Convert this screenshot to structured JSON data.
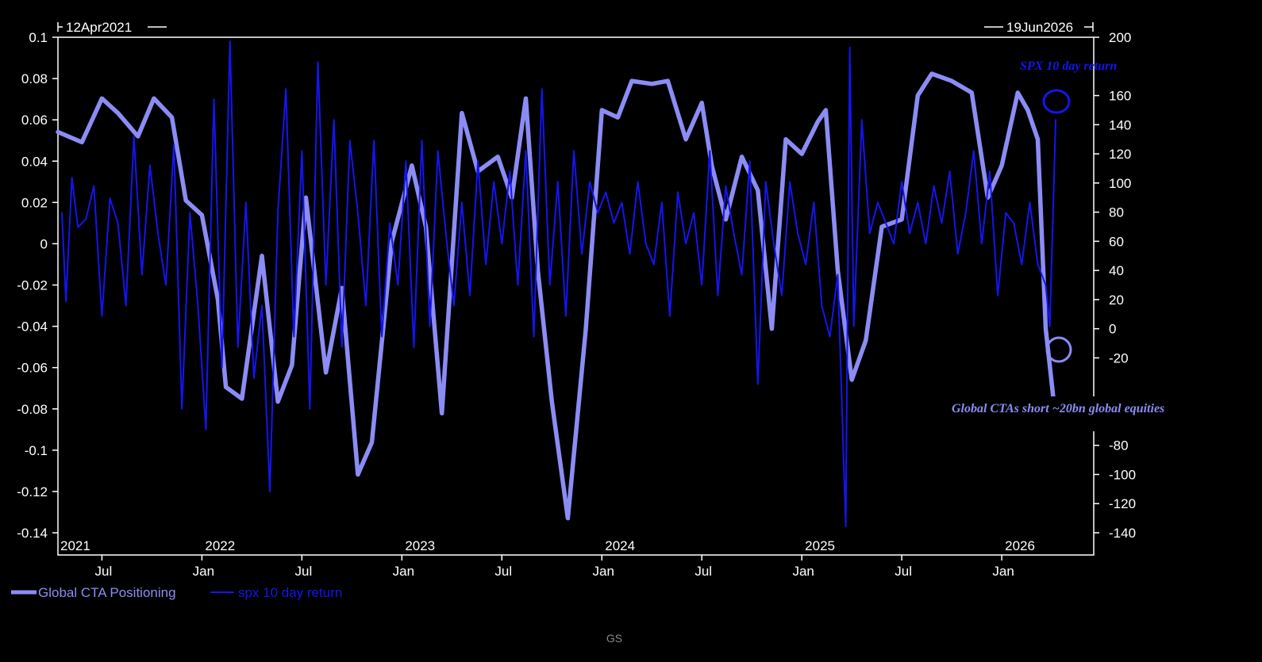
{
  "chart_data": {
    "type": "line",
    "range_start": "12Apr2021",
    "range_end": "19Jun2026",
    "x_years": [
      "2021",
      "2022",
      "2023",
      "2024",
      "2025",
      "2026"
    ],
    "x_month_ticks": [
      "Jul",
      "Jan",
      "Jul",
      "Jan",
      "Jul",
      "Jan",
      "Jul",
      "Jan",
      "Jul",
      "Jan"
    ],
    "y_left": {
      "min": -0.14,
      "max": 0.1,
      "ticks": [
        "0.1",
        "0.08",
        "0.06",
        "0.04",
        "0.02",
        "0",
        "-0.02",
        "-0.04",
        "-0.06",
        "-0.08",
        "-0.1",
        "-0.12",
        "-0.14"
      ]
    },
    "y_right": {
      "min": -140,
      "max": 200,
      "ticks": [
        "200",
        "160",
        "140",
        "120",
        "100",
        "80",
        "60",
        "40",
        "20",
        "0",
        "-20",
        "-80",
        "-100",
        "-120",
        "-140"
      ]
    },
    "colors": {
      "cta": "#8c8cf5",
      "spx": "#1515ee",
      "axis": "#ffffff",
      "background": "#000000"
    },
    "series": [
      {
        "name": "Global CTA Positioning",
        "axis": "right",
        "color": "#8c8cf5",
        "x": [
          2021.28,
          2021.4,
          2021.5,
          2021.58,
          2021.68,
          2021.76,
          2021.85,
          2021.92,
          2022.0,
          2022.08,
          2022.12,
          2022.2,
          2022.3,
          2022.38,
          2022.45,
          2022.52,
          2022.62,
          2022.7,
          2022.78,
          2022.85,
          2022.95,
          2023.05,
          2023.12,
          2023.2,
          2023.3,
          2023.38,
          2023.48,
          2023.55,
          2023.62,
          2023.68,
          2023.75,
          2023.83,
          2023.92,
          2024.0,
          2024.08,
          2024.15,
          2024.25,
          2024.33,
          2024.42,
          2024.5,
          2024.55,
          2024.62,
          2024.7,
          2024.78,
          2024.85,
          2024.92,
          2025.0,
          2025.08,
          2025.12,
          2025.18,
          2025.25,
          2025.32,
          2025.4,
          2025.5,
          2025.58,
          2025.65,
          2025.75,
          2025.85,
          2025.93,
          2026.0,
          2026.08,
          2026.13,
          2026.18,
          2026.22,
          2026.26
        ],
        "values": [
          135,
          128,
          158,
          148,
          132,
          158,
          145,
          88,
          78,
          20,
          -40,
          -48,
          50,
          -50,
          -25,
          90,
          -30,
          28,
          -100,
          -78,
          60,
          112,
          70,
          -58,
          148,
          108,
          118,
          90,
          158,
          40,
          -50,
          -130,
          0,
          150,
          145,
          170,
          168,
          170,
          130,
          155,
          112,
          75,
          118,
          95,
          0,
          130,
          120,
          142,
          150,
          40,
          -35,
          -8,
          70,
          75,
          160,
          175,
          170,
          162,
          90,
          112,
          162,
          150,
          130,
          0,
          -50
        ]
      },
      {
        "name": "spx 10 day return",
        "axis": "left",
        "color": "#1515ee",
        "x": [
          2021.3,
          2021.32,
          2021.35,
          2021.38,
          2021.42,
          2021.46,
          2021.5,
          2021.54,
          2021.58,
          2021.62,
          2021.66,
          2021.7,
          2021.74,
          2021.78,
          2021.82,
          2021.86,
          2021.9,
          2021.94,
          2021.98,
          2022.02,
          2022.06,
          2022.1,
          2022.14,
          2022.18,
          2022.22,
          2022.26,
          2022.3,
          2022.34,
          2022.38,
          2022.42,
          2022.46,
          2022.5,
          2022.54,
          2022.58,
          2022.62,
          2022.66,
          2022.7,
          2022.74,
          2022.78,
          2022.82,
          2022.86,
          2022.9,
          2022.94,
          2022.98,
          2023.02,
          2023.06,
          2023.1,
          2023.14,
          2023.18,
          2023.22,
          2023.26,
          2023.3,
          2023.34,
          2023.38,
          2023.42,
          2023.46,
          2023.5,
          2023.54,
          2023.58,
          2023.62,
          2023.66,
          2023.7,
          2023.74,
          2023.78,
          2023.82,
          2023.86,
          2023.9,
          2023.94,
          2023.98,
          2024.02,
          2024.06,
          2024.1,
          2024.14,
          2024.18,
          2024.22,
          2024.26,
          2024.3,
          2024.34,
          2024.38,
          2024.42,
          2024.46,
          2024.5,
          2024.54,
          2024.58,
          2024.62,
          2024.66,
          2024.7,
          2024.74,
          2024.78,
          2024.82,
          2024.86,
          2024.9,
          2024.94,
          2024.98,
          2025.02,
          2025.06,
          2025.1,
          2025.14,
          2025.18,
          2025.22,
          2025.24,
          2025.26,
          2025.3,
          2025.34,
          2025.38,
          2025.42,
          2025.46,
          2025.5,
          2025.54,
          2025.58,
          2025.62,
          2025.66,
          2025.7,
          2025.74,
          2025.78,
          2025.82,
          2025.86,
          2025.9,
          2025.94,
          2025.98,
          2026.02,
          2026.06,
          2026.1,
          2026.14,
          2026.18,
          2026.22,
          2026.24,
          2026.27
        ],
        "values": [
          0.015,
          -0.028,
          0.032,
          0.008,
          0.012,
          0.028,
          -0.035,
          0.022,
          0.01,
          -0.03,
          0.052,
          -0.015,
          0.038,
          0.005,
          -0.02,
          0.048,
          -0.08,
          0.015,
          -0.03,
          -0.09,
          0.07,
          -0.06,
          0.098,
          -0.05,
          0.02,
          -0.065,
          -0.03,
          -0.12,
          0.015,
          0.075,
          -0.045,
          0.045,
          -0.08,
          0.088,
          -0.02,
          0.06,
          -0.05,
          0.05,
          0.015,
          -0.03,
          0.05,
          -0.045,
          0.01,
          -0.02,
          0.04,
          -0.05,
          0.05,
          -0.04,
          0.045,
          0.005,
          -0.03,
          0.02,
          -0.025,
          0.04,
          -0.01,
          0.03,
          0.0,
          0.035,
          -0.02,
          0.045,
          -0.045,
          0.075,
          -0.02,
          0.03,
          -0.035,
          0.045,
          -0.005,
          0.03,
          0.015,
          0.025,
          0.01,
          0.02,
          -0.005,
          0.03,
          0.0,
          -0.01,
          0.02,
          -0.035,
          0.025,
          0.0,
          0.015,
          -0.02,
          0.045,
          -0.025,
          0.028,
          0.005,
          -0.015,
          0.04,
          -0.068,
          0.03,
          0.0,
          -0.025,
          0.03,
          0.005,
          -0.01,
          0.02,
          -0.03,
          -0.045,
          -0.015,
          -0.137,
          0.095,
          -0.04,
          0.06,
          0.005,
          0.02,
          0.01,
          0.0,
          0.03,
          0.005,
          0.02,
          0.0,
          0.028,
          0.01,
          0.035,
          -0.005,
          0.015,
          0.045,
          0.0,
          0.035,
          -0.025,
          0.015,
          0.01,
          -0.01,
          0.02,
          -0.01,
          -0.02,
          -0.04,
          0.06
        ]
      }
    ],
    "annotations": [
      {
        "text": "SPX 10 day return",
        "color": "#1515ee"
      },
      {
        "text": "Global CTAs short ~20bn global equities",
        "color": "#8c8cf5"
      }
    ],
    "legend": [
      {
        "label": "Global CTA Positioning",
        "color": "#8c8cf5"
      },
      {
        "label": "spx 10 day return",
        "color": "#1515ee"
      }
    ],
    "source": "GS"
  }
}
